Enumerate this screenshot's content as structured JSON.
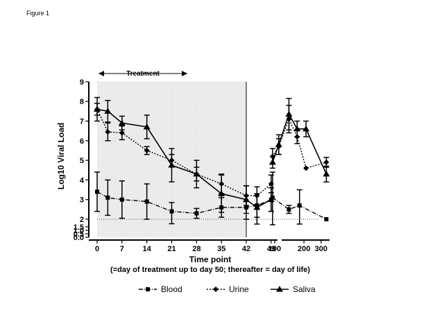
{
  "figure_label": "Figure 1",
  "chart_data": {
    "type": "line",
    "xlabel": "Time point",
    "xlabel_sub": "(=day of treatment up to day 50; thereafter = day of life)",
    "ylabel": "Log10 Viral Load",
    "y_ticks": [
      "0.0",
      "0.5",
      "1.0",
      "1.5",
      "2",
      "3",
      "4",
      "5",
      "6",
      "7",
      "8",
      "9"
    ],
    "y_tick_values": [
      0.0,
      0.5,
      1.0,
      1.5,
      2,
      3,
      4,
      5,
      6,
      7,
      8,
      9
    ],
    "ylim": [
      0,
      9
    ],
    "y_scale": "segmented: 0–1.5 compressed, 2–9 linear",
    "x_ticks_left": [
      "0",
      "7",
      "14",
      "21",
      "28",
      "35",
      "42",
      "49"
    ],
    "x_ticks_right": [
      "100",
      "200",
      "300"
    ],
    "x_axis": "broken: linear 0–50 days, then day of life ~90–350",
    "shaded_region": {
      "label": "Treatment",
      "x_start": 0,
      "x_end": 42
    },
    "reference_line": {
      "y": 2,
      "style": "dotted"
    },
    "legend": [
      "Blood",
      "Urine",
      "Saliva"
    ],
    "legend_position": "bottom",
    "series": [
      {
        "name": "Blood",
        "marker": "square",
        "line_style": "dash-dot",
        "segments": [
          {
            "x": [
              0,
              3,
              7,
              14,
              21,
              28,
              35,
              42,
              45,
              49
            ],
            "y": [
              3.4,
              3.1,
              3.0,
              2.9,
              2.4,
              2.3,
              2.6,
              2.6,
              2.7,
              3.0
            ],
            "err": [
              1.0,
              0.9,
              0.95,
              0.9,
              0.45,
              0.25,
              0.5,
              0.6,
              0.6,
              0.6
            ]
          },
          {
            "x": [
              95,
              140,
              180,
              340
            ],
            "y": [
              3.1,
              2.5,
              2.7,
              2.0
            ],
            "err": [
              1.3,
              0.2,
              0.8,
              0.0
            ]
          }
        ]
      },
      {
        "name": "Urine",
        "marker": "diamond",
        "line_style": "dotted",
        "segments": [
          {
            "x": [
              0,
              3,
              7,
              14,
              21,
              28,
              35,
              42,
              45,
              49
            ],
            "y": [
              7.6,
              6.45,
              6.4,
              5.5,
              5.0,
              4.3,
              3.8,
              3.2,
              3.2,
              3.8
            ],
            "err": [
              0.3,
              0.45,
              0.35,
              0.2,
              0.3,
              0.35,
              0.5,
              0.5,
              0.45,
              0.45
            ]
          },
          {
            "x": [
              95,
              110,
              140,
              170,
              210,
              340
            ],
            "y": [
              5.2,
              5.7,
              7.1,
              6.2,
              4.6,
              4.9
            ],
            "err": [
              0.4,
              0.4,
              0.7,
              0.35,
              0.0,
              0.25
            ]
          }
        ]
      },
      {
        "name": "Saliva",
        "marker": "triangle",
        "line_style": "solid",
        "segments": [
          {
            "x": [
              0,
              3,
              7,
              14,
              21,
              28,
              35,
              42,
              45,
              49
            ],
            "y": [
              7.6,
              7.5,
              6.9,
              6.7,
              4.75,
              4.3,
              3.3,
              3.0,
              2.6,
              3.0
            ],
            "err": [
              0.6,
              0.55,
              0.35,
              0.6,
              0.85,
              0.7,
              0.95,
              0.7,
              0.7,
              0.6
            ]
          },
          {
            "x": [
              95,
              110,
              140,
              170,
              210,
              340
            ],
            "y": [
              4.9,
              5.8,
              7.35,
              6.6,
              6.6,
              4.3
            ],
            "err": [
              0.3,
              0.5,
              0.8,
              0.4,
              0.4,
              0.4
            ]
          }
        ]
      }
    ]
  }
}
